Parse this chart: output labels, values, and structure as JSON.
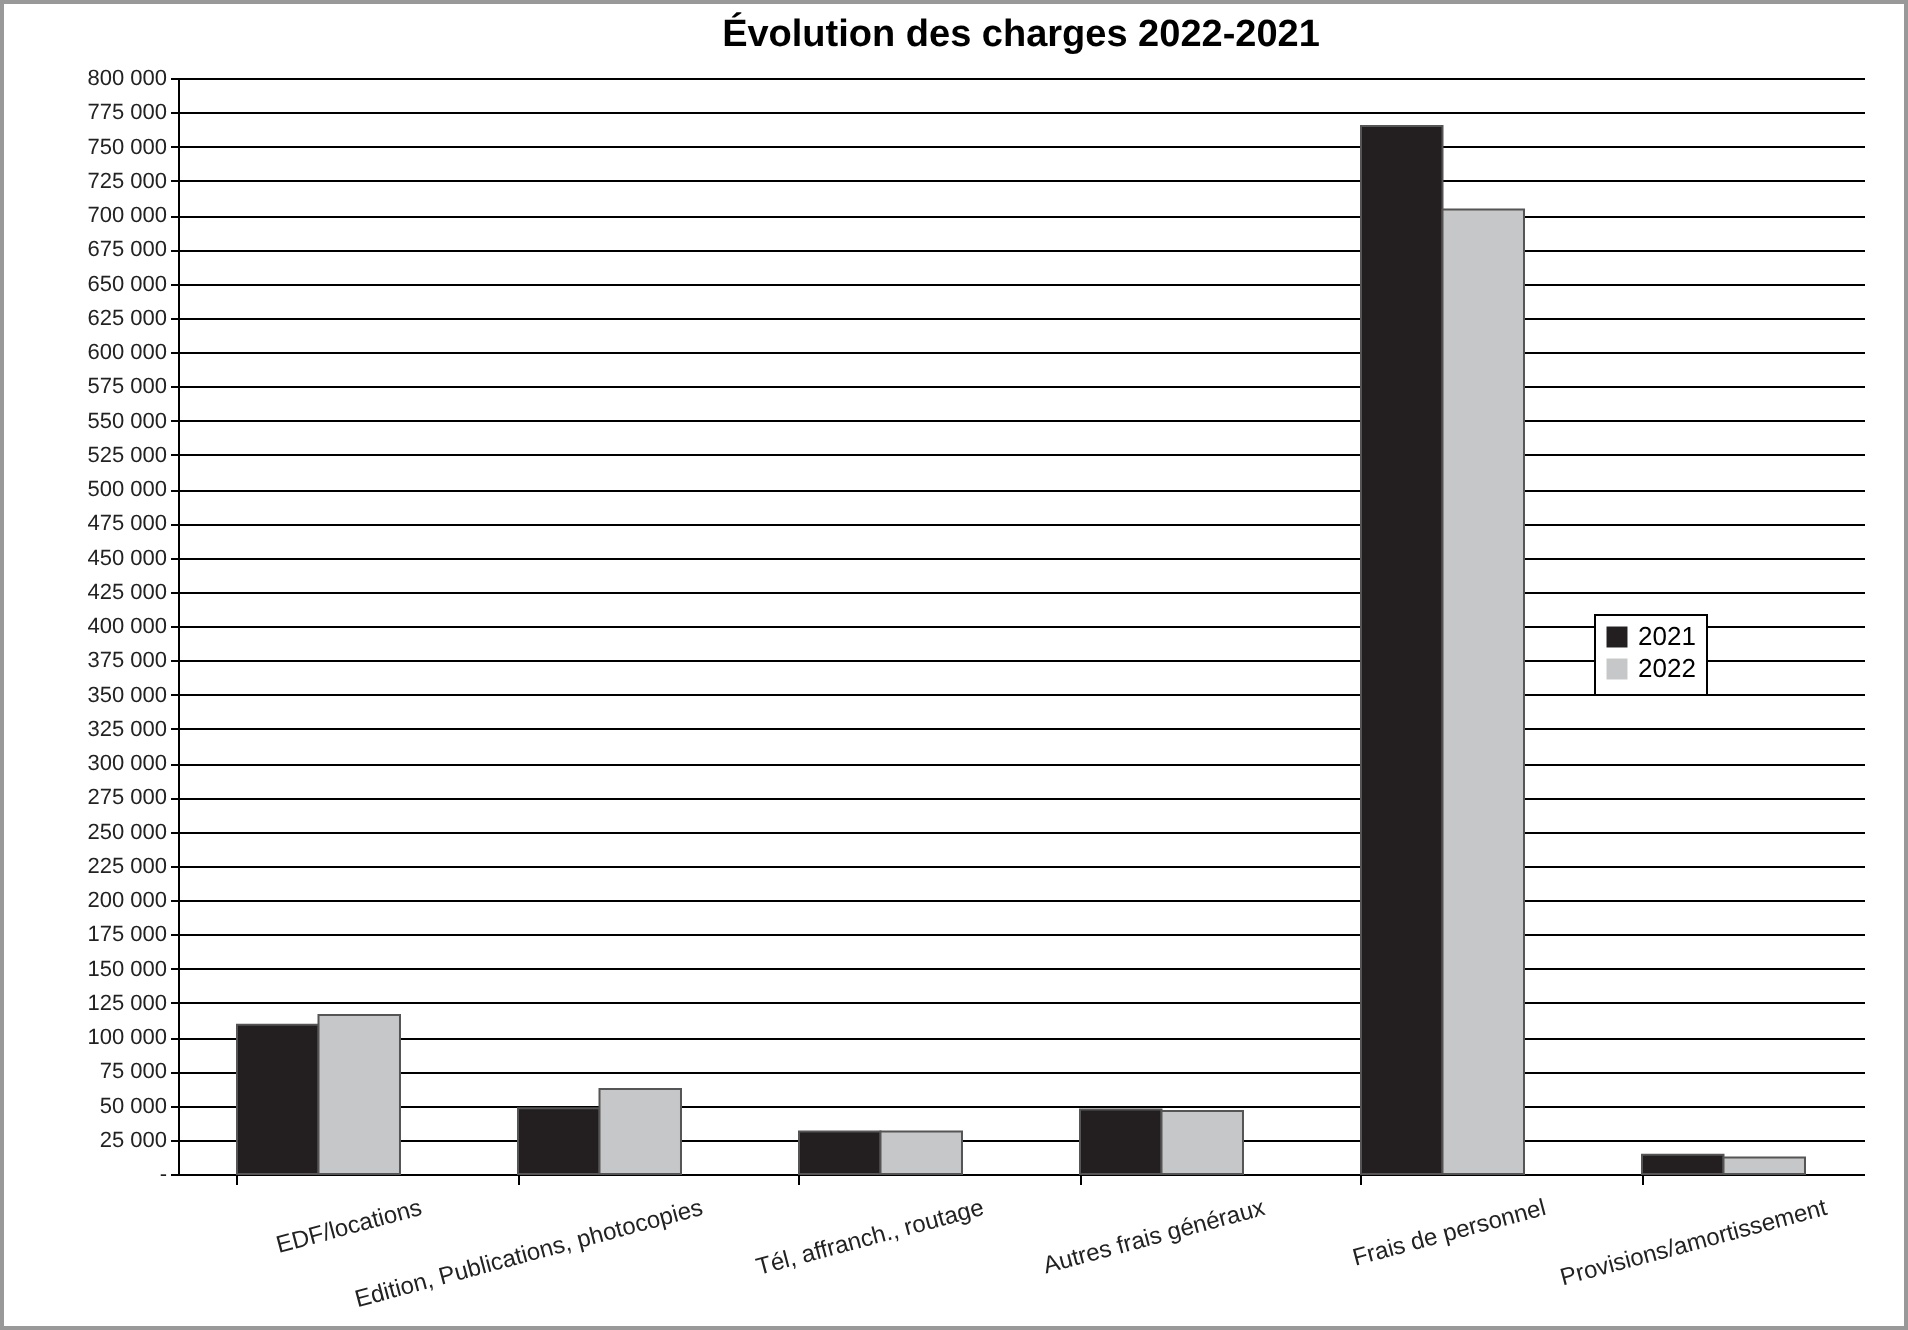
{
  "chart_data": {
    "type": "bar",
    "title": "Évolution des charges 2022-2021",
    "categories": [
      "EDF/locations",
      "Edition, Publications, photocopies",
      "Tél, affranch., routage",
      "Autres frais généraux",
      "Frais de personnel",
      "Provisions/amortissement"
    ],
    "series": [
      {
        "name": "2021",
        "color": "#231f20",
        "values": [
          109000,
          48000,
          31000,
          47000,
          765000,
          14000
        ]
      },
      {
        "name": "2022",
        "color": "#c6c7c8",
        "values": [
          116000,
          62000,
          31000,
          46000,
          704000,
          12000
        ]
      }
    ],
    "ylim": [
      0,
      800000
    ],
    "yticks": [
      {
        "value": 0,
        "label": "-"
      },
      {
        "value": 25000,
        "label": "25 000"
      },
      {
        "value": 50000,
        "label": "50 000"
      },
      {
        "value": 75000,
        "label": "75 000"
      },
      {
        "value": 100000,
        "label": "100 000"
      },
      {
        "value": 125000,
        "label": "125 000"
      },
      {
        "value": 150000,
        "label": "150 000"
      },
      {
        "value": 175000,
        "label": "175 000"
      },
      {
        "value": 200000,
        "label": "200 000"
      },
      {
        "value": 225000,
        "label": "225 000"
      },
      {
        "value": 250000,
        "label": "250 000"
      },
      {
        "value": 275000,
        "label": "275 000"
      },
      {
        "value": 300000,
        "label": "300 000"
      },
      {
        "value": 325000,
        "label": "325 000"
      },
      {
        "value": 350000,
        "label": "350 000"
      },
      {
        "value": 375000,
        "label": "375 000"
      },
      {
        "value": 400000,
        "label": "400 000"
      },
      {
        "value": 425000,
        "label": "425 000"
      },
      {
        "value": 450000,
        "label": "450 000"
      },
      {
        "value": 475000,
        "label": "475 000"
      },
      {
        "value": 500000,
        "label": "500 000"
      },
      {
        "value": 525000,
        "label": "525 000"
      },
      {
        "value": 550000,
        "label": "550 000"
      },
      {
        "value": 575000,
        "label": "575 000"
      },
      {
        "value": 600000,
        "label": "600 000"
      },
      {
        "value": 625000,
        "label": "625 000"
      },
      {
        "value": 650000,
        "label": "650 000"
      },
      {
        "value": 675000,
        "label": "675 000"
      },
      {
        "value": 700000,
        "label": "700 000"
      },
      {
        "value": 725000,
        "label": "725 000"
      },
      {
        "value": 750000,
        "label": "750 000"
      },
      {
        "value": 775000,
        "label": "775 000"
      },
      {
        "value": 800000,
        "label": "800 000"
      }
    ],
    "grid": "y",
    "legend": "right"
  }
}
